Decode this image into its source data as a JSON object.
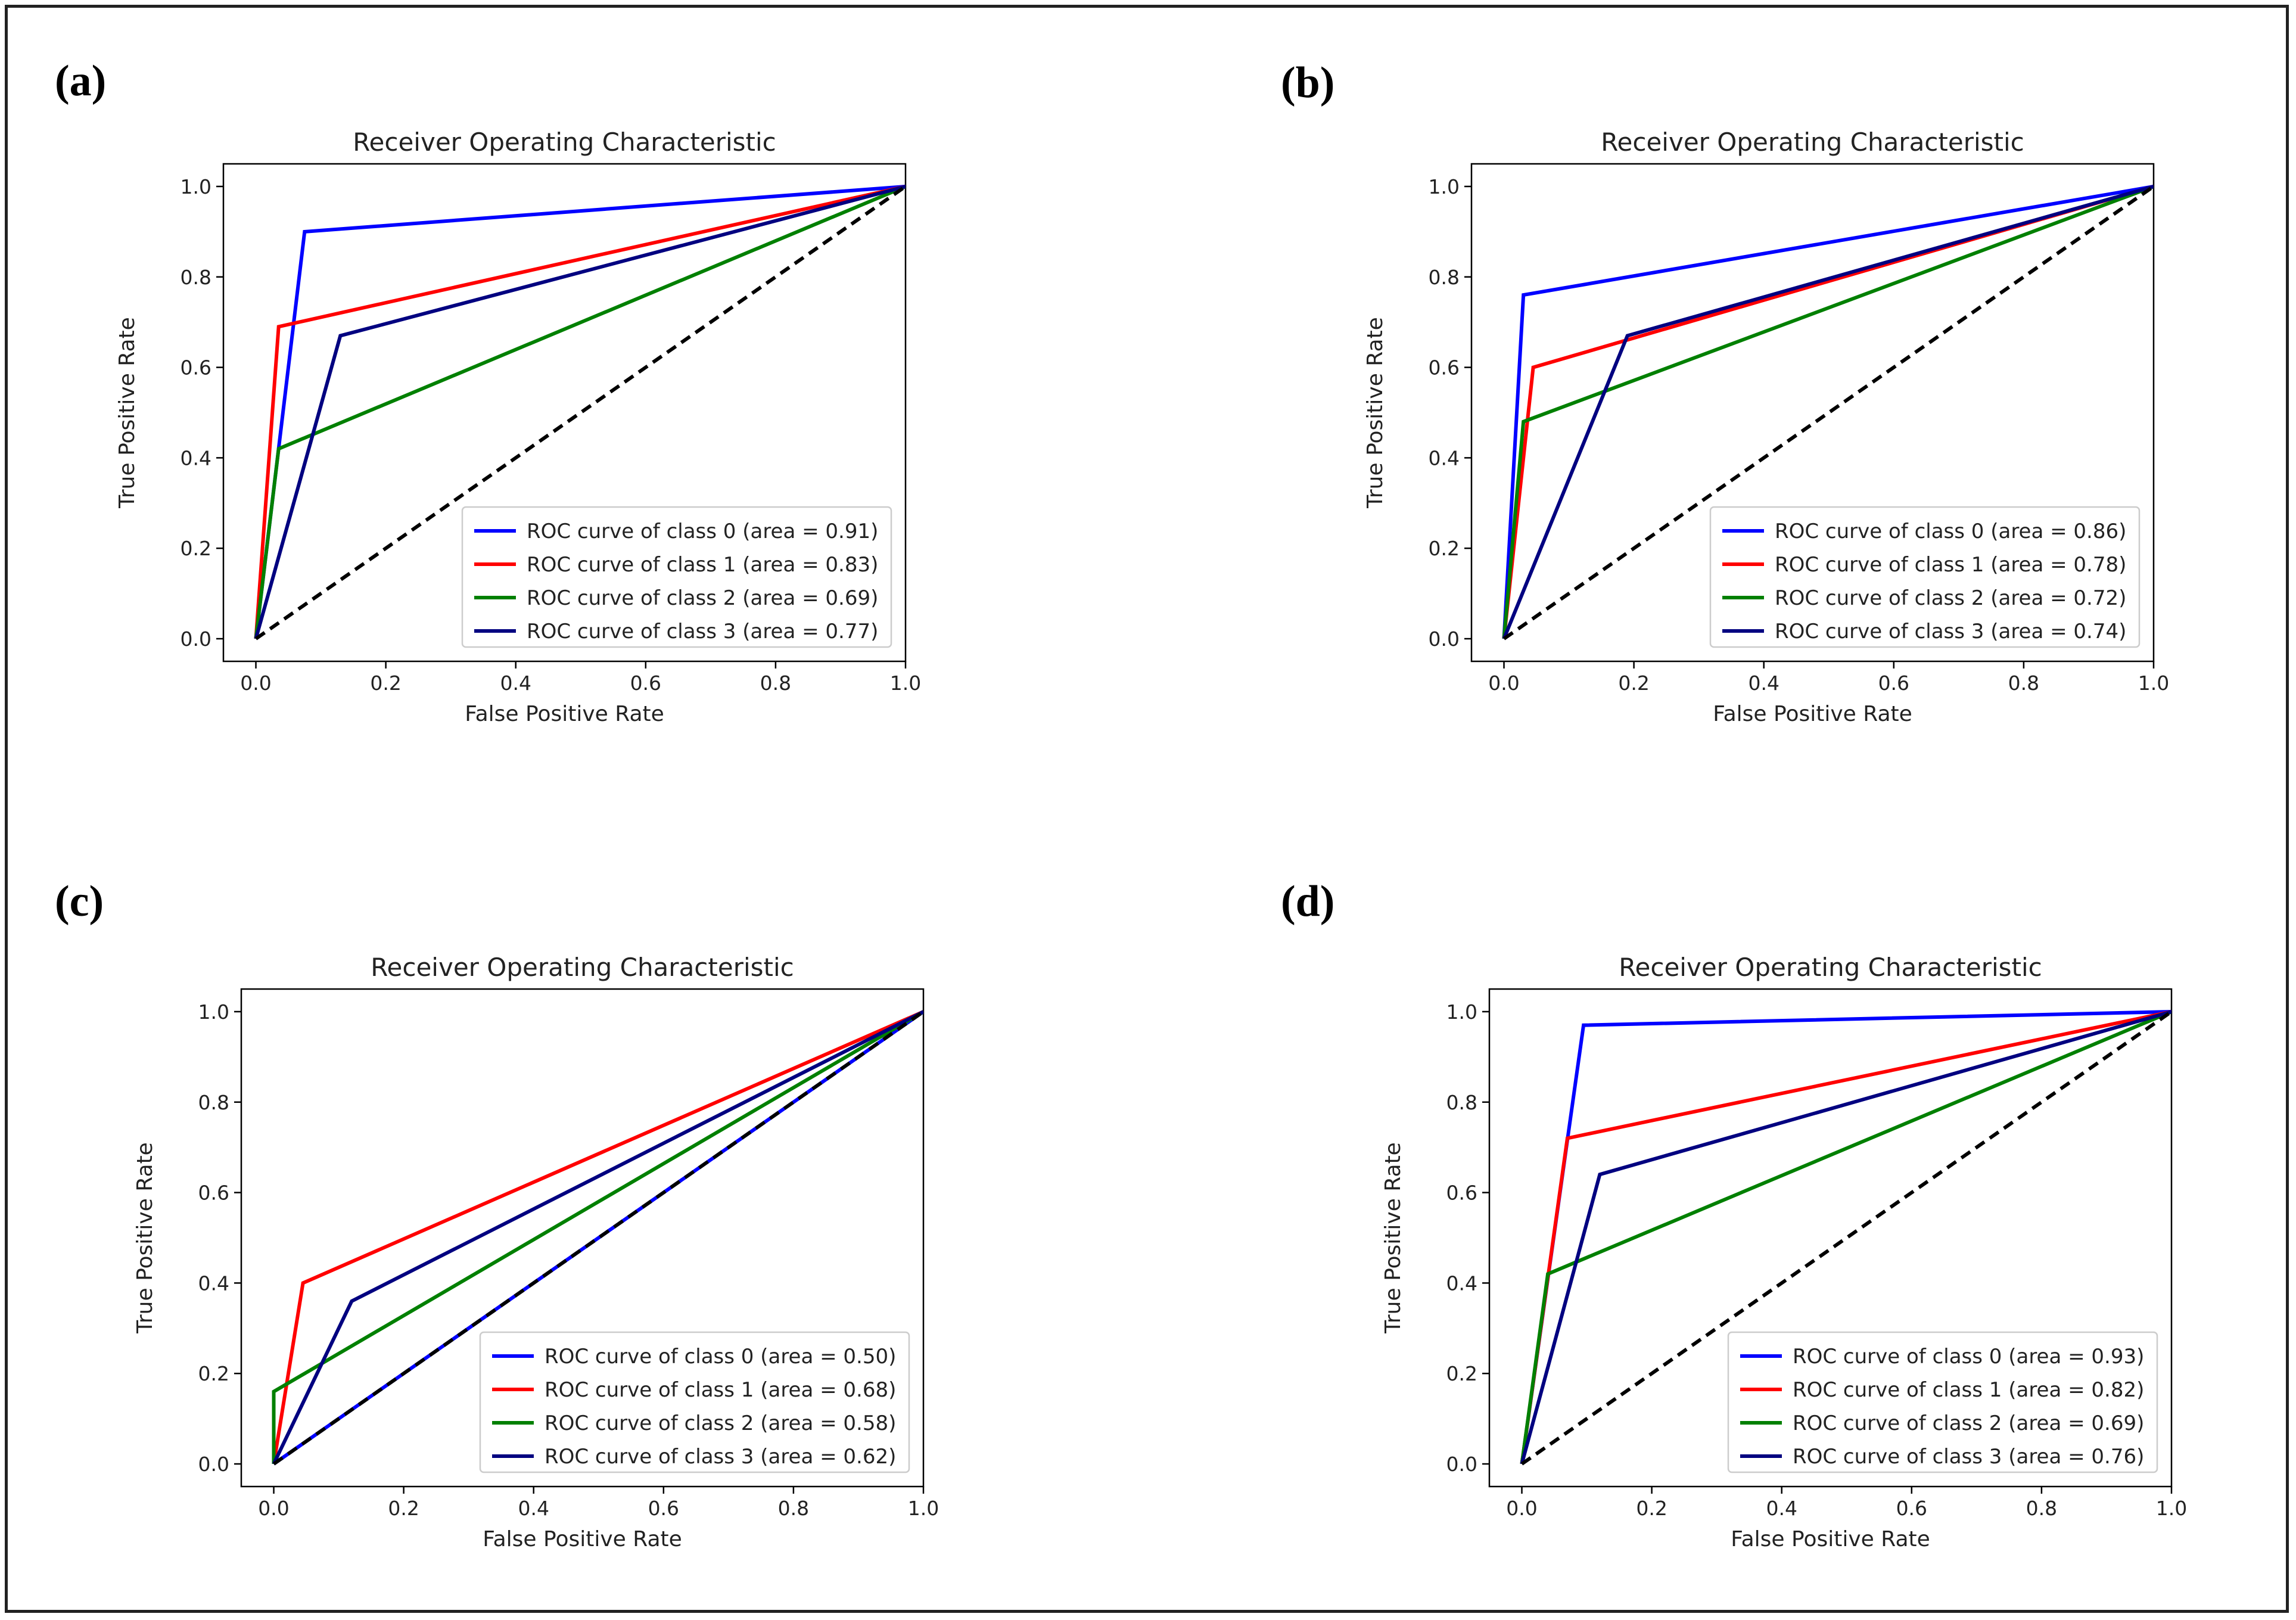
{
  "colors": {
    "class_0": "#0000ff",
    "class_1": "#ff0000",
    "class_2": "#008000",
    "class_3": "#000080",
    "diagonal": "#000000"
  },
  "chart_data": [
    {
      "panel_label": "(a)",
      "type": "line",
      "title": "Receiver Operating Characteristic",
      "xlabel": "False Positive Rate",
      "ylabel": "True Positive Rate",
      "xlim": [
        0.0,
        1.0
      ],
      "ylim": [
        0.0,
        1.0
      ],
      "xticks": [
        "0.0",
        "0.2",
        "0.4",
        "0.6",
        "0.8",
        "1.0"
      ],
      "yticks": [
        "0.0",
        "0.2",
        "0.4",
        "0.6",
        "0.8",
        "1.0"
      ],
      "grid": false,
      "legend_position": "lower-right",
      "series": [
        {
          "name": "ROC curve of class 0 (area = 0.91)",
          "color_key": "class_0",
          "x": [
            0,
            0.075,
            1
          ],
          "y": [
            0,
            0.9,
            1
          ]
        },
        {
          "name": "ROC curve of class 1 (area = 0.83)",
          "color_key": "class_1",
          "x": [
            0,
            0.035,
            1
          ],
          "y": [
            0,
            0.69,
            1
          ]
        },
        {
          "name": "ROC curve of class 2 (area = 0.69)",
          "color_key": "class_2",
          "x": [
            0,
            0.035,
            1
          ],
          "y": [
            0,
            0.42,
            1
          ]
        },
        {
          "name": "ROC curve of class 3 (area = 0.77)",
          "color_key": "class_3",
          "x": [
            0,
            0.13,
            1
          ],
          "y": [
            0,
            0.67,
            1
          ]
        }
      ],
      "diagonal": {
        "x": [
          0,
          1
        ],
        "y": [
          0,
          1
        ],
        "style": "dashed"
      }
    },
    {
      "panel_label": "(b)",
      "type": "line",
      "title": "Receiver Operating Characteristic",
      "xlabel": "False Positive Rate",
      "ylabel": "True Positive Rate",
      "xlim": [
        0.0,
        1.0
      ],
      "ylim": [
        0.0,
        1.0
      ],
      "xticks": [
        "0.0",
        "0.2",
        "0.4",
        "0.6",
        "0.8",
        "1.0"
      ],
      "yticks": [
        "0.0",
        "0.2",
        "0.4",
        "0.6",
        "0.8",
        "1.0"
      ],
      "grid": false,
      "legend_position": "lower-right",
      "series": [
        {
          "name": "ROC curve of class 0 (area = 0.86)",
          "color_key": "class_0",
          "x": [
            0,
            0.03,
            1
          ],
          "y": [
            0,
            0.76,
            1
          ]
        },
        {
          "name": "ROC curve of class 1 (area = 0.78)",
          "color_key": "class_1",
          "x": [
            0,
            0.045,
            1
          ],
          "y": [
            0,
            0.6,
            1
          ]
        },
        {
          "name": "ROC curve of class 2 (area = 0.72)",
          "color_key": "class_2",
          "x": [
            0,
            0.03,
            1
          ],
          "y": [
            0,
            0.48,
            1
          ]
        },
        {
          "name": "ROC curve of class 3 (area = 0.74)",
          "color_key": "class_3",
          "x": [
            0,
            0.19,
            1
          ],
          "y": [
            0,
            0.67,
            1
          ]
        }
      ],
      "diagonal": {
        "x": [
          0,
          1
        ],
        "y": [
          0,
          1
        ],
        "style": "dashed"
      }
    },
    {
      "panel_label": "(c)",
      "type": "line",
      "title": "Receiver Operating Characteristic",
      "xlabel": "False Positive Rate",
      "ylabel": "True Positive Rate",
      "xlim": [
        0.0,
        1.0
      ],
      "ylim": [
        0.0,
        1.0
      ],
      "xticks": [
        "0.0",
        "0.2",
        "0.4",
        "0.6",
        "0.8",
        "1.0"
      ],
      "yticks": [
        "0.0",
        "0.2",
        "0.4",
        "0.6",
        "0.8",
        "1.0"
      ],
      "grid": false,
      "legend_position": "lower-right",
      "series": [
        {
          "name": "ROC curve of class 0 (area = 0.50)",
          "color_key": "class_0",
          "x": [
            0,
            1
          ],
          "y": [
            0,
            1
          ]
        },
        {
          "name": "ROC curve of class 1 (area = 0.68)",
          "color_key": "class_1",
          "x": [
            0,
            0.045,
            1
          ],
          "y": [
            0,
            0.4,
            1
          ]
        },
        {
          "name": "ROC curve of class 2 (area = 0.58)",
          "color_key": "class_2",
          "x": [
            0,
            0,
            1
          ],
          "y": [
            0,
            0.16,
            1
          ]
        },
        {
          "name": "ROC curve of class 3 (area = 0.62)",
          "color_key": "class_3",
          "x": [
            0,
            0.12,
            1
          ],
          "y": [
            0,
            0.36,
            1
          ]
        }
      ],
      "diagonal": {
        "x": [
          0,
          1
        ],
        "y": [
          0,
          1
        ],
        "style": "dashed"
      }
    },
    {
      "panel_label": "(d)",
      "type": "line",
      "title": "Receiver Operating Characteristic",
      "xlabel": "False Positive Rate",
      "ylabel": "True Positive Rate",
      "xlim": [
        0.0,
        1.0
      ],
      "ylim": [
        0.0,
        1.0
      ],
      "xticks": [
        "0.0",
        "0.2",
        "0.4",
        "0.6",
        "0.8",
        "1.0"
      ],
      "yticks": [
        "0.0",
        "0.2",
        "0.4",
        "0.6",
        "0.8",
        "1.0"
      ],
      "grid": false,
      "legend_position": "lower-right",
      "series": [
        {
          "name": "ROC curve of class 0 (area = 0.93)",
          "color_key": "class_0",
          "x": [
            0,
            0.095,
            1
          ],
          "y": [
            0,
            0.97,
            1
          ]
        },
        {
          "name": "ROC curve of class 1 (area = 0.82)",
          "color_key": "class_1",
          "x": [
            0,
            0.07,
            1
          ],
          "y": [
            0,
            0.72,
            1
          ]
        },
        {
          "name": "ROC curve of class 2 (area = 0.69)",
          "color_key": "class_2",
          "x": [
            0,
            0.04,
            1
          ],
          "y": [
            0,
            0.42,
            1
          ]
        },
        {
          "name": "ROC curve of class 3 (area = 0.76)",
          "color_key": "class_3",
          "x": [
            0,
            0.12,
            1
          ],
          "y": [
            0,
            0.64,
            1
          ]
        }
      ],
      "diagonal": {
        "x": [
          0,
          1
        ],
        "y": [
          0,
          1
        ],
        "style": "dashed"
      }
    }
  ]
}
